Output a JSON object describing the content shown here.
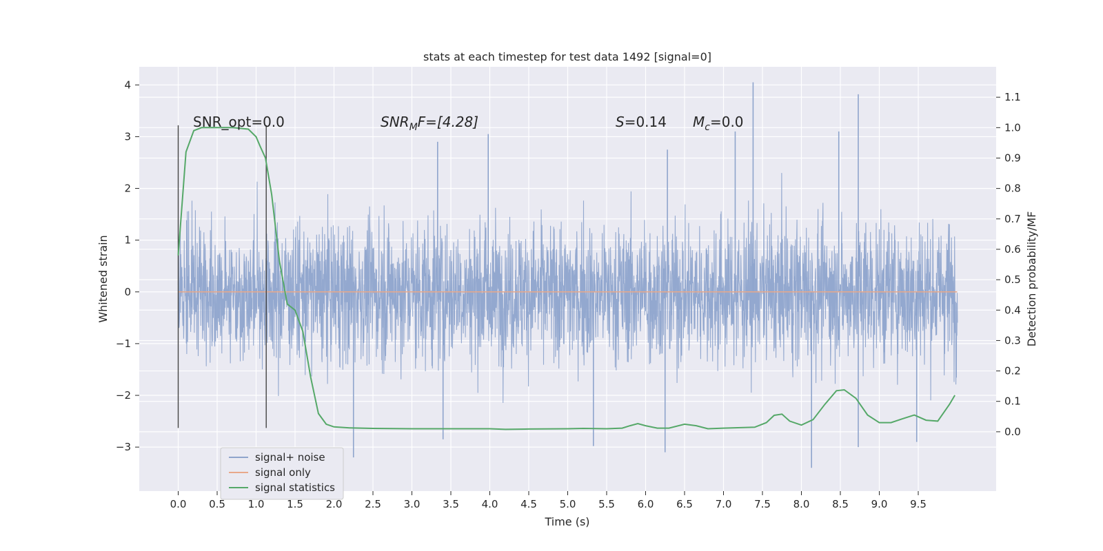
{
  "chart_data": {
    "type": "line",
    "title": "stats at each timestep for test data 1492 [signal=0]",
    "xlabel": "Time (s)",
    "ylabel": "Whitened strain",
    "y2label": "Detection probability/MF",
    "xlim": [
      -0.5,
      10.5
    ],
    "ylim": [
      -3.85,
      4.35
    ],
    "y2lim": [
      -0.195,
      1.2
    ],
    "xticks": [
      "0.0",
      "0.5",
      "1.0",
      "1.5",
      "2.0",
      "2.5",
      "3.0",
      "3.5",
      "4.0",
      "4.5",
      "5.0",
      "5.5",
      "6.0",
      "6.5",
      "7.0",
      "7.5",
      "8.0",
      "8.5",
      "9.0",
      "9.5"
    ],
    "yticks": [
      "4",
      "3",
      "2",
      "1",
      "0",
      "−1",
      "−2",
      "−3"
    ],
    "y2ticks": [
      "1.1",
      "1.0",
      "0.9",
      "0.8",
      "0.7",
      "0.6",
      "0.5",
      "0.4",
      "0.3",
      "0.2",
      "0.1",
      "0.0"
    ],
    "grid": true,
    "legend_position": "lower-left",
    "annotations": {
      "snr_opt": "SNR_opt=0.0",
      "snr_mf_prefix": "SNR",
      "snr_mf_sub": "M",
      "snr_mf_suffix": "F=[4.28]",
      "s_prefix": "S",
      "s_value": "=0.14",
      "mc_prefix": "M",
      "mc_sub": "c",
      "mc_value": "=0.0"
    },
    "window_markers": [
      0.0,
      1.13
    ],
    "series": [
      {
        "name": "signal+ noise",
        "color": "#8ea4cc",
        "note_amplitude_range": [
          -3.4,
          4.05
        ],
        "x_range": [
          0.0,
          10.0
        ],
        "spikes_high": [
          [
            7.38,
            4.05
          ],
          [
            8.73,
            3.82
          ],
          [
            3.98,
            3.05
          ],
          [
            7.15,
            3.1
          ],
          [
            8.48,
            3.1
          ],
          [
            3.33,
            2.9
          ],
          [
            6.28,
            2.75
          ]
        ],
        "spikes_low": [
          [
            8.13,
            -3.4
          ],
          [
            2.25,
            -3.2
          ],
          [
            6.25,
            -3.1
          ],
          [
            5.33,
            -2.98
          ],
          [
            3.4,
            -2.85
          ],
          [
            8.73,
            -3.0
          ],
          [
            9.48,
            -2.9
          ]
        ]
      },
      {
        "name": "signal only",
        "color": "#e8a88a",
        "x": [
          0.0,
          10.0
        ],
        "y": [
          0.0,
          0.0
        ]
      },
      {
        "name": "signal statistics",
        "color": "#55a868",
        "axis": "right",
        "x": [
          0.0,
          0.1,
          0.2,
          0.3,
          0.5,
          0.7,
          0.9,
          1.0,
          1.05,
          1.12,
          1.2,
          1.3,
          1.4,
          1.5,
          1.6,
          1.7,
          1.8,
          1.9,
          2.0,
          2.2,
          2.5,
          3.0,
          3.5,
          4.0,
          4.2,
          4.5,
          5.0,
          5.2,
          5.5,
          5.7,
          5.8,
          5.9,
          6.0,
          6.15,
          6.3,
          6.5,
          6.65,
          6.8,
          7.0,
          7.4,
          7.55,
          7.65,
          7.75,
          7.85,
          8.0,
          8.15,
          8.3,
          8.45,
          8.55,
          8.7,
          8.85,
          9.0,
          9.15,
          9.3,
          9.45,
          9.6,
          9.75,
          9.9,
          9.97
        ],
        "y": [
          0.58,
          0.92,
          0.99,
          1.0,
          1.0,
          1.0,
          0.995,
          0.97,
          0.94,
          0.9,
          0.78,
          0.56,
          0.42,
          0.4,
          0.33,
          0.18,
          0.06,
          0.025,
          0.016,
          0.013,
          0.011,
          0.01,
          0.01,
          0.01,
          0.008,
          0.009,
          0.01,
          0.011,
          0.01,
          0.012,
          0.02,
          0.027,
          0.02,
          0.012,
          0.012,
          0.025,
          0.02,
          0.01,
          0.012,
          0.015,
          0.03,
          0.054,
          0.058,
          0.035,
          0.022,
          0.04,
          0.09,
          0.135,
          0.138,
          0.11,
          0.055,
          0.03,
          0.03,
          0.043,
          0.055,
          0.038,
          0.035,
          0.09,
          0.12
        ]
      }
    ]
  }
}
